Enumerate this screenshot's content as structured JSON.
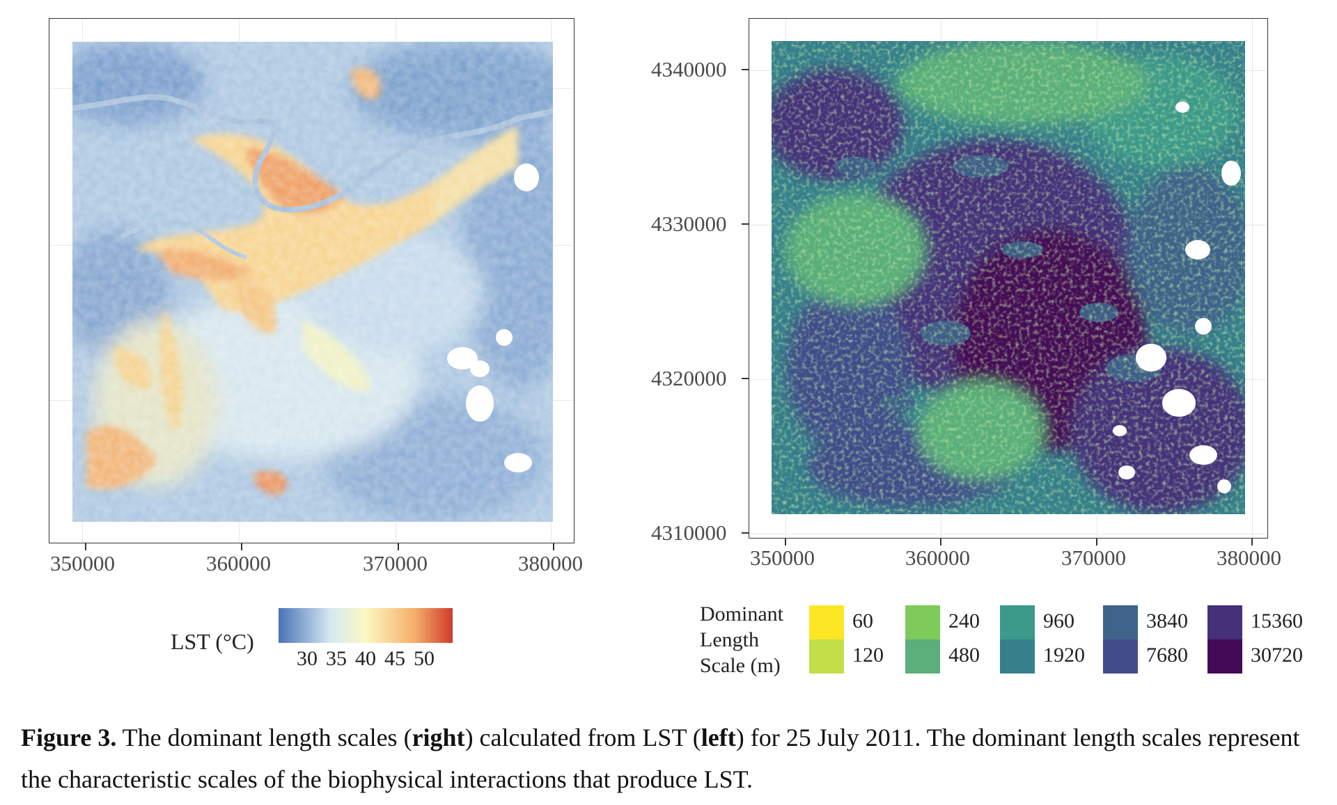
{
  "left_panel": {
    "x_ticks": [
      "350000",
      "360000",
      "370000",
      "380000"
    ],
    "legend": {
      "title": "LST (°C)",
      "ticks": [
        "30",
        "35",
        "40",
        "45",
        "50"
      ],
      "colors": [
        "#4a73b5",
        "#d6e9f2",
        "#fbf8c2",
        "#f4b06a",
        "#d03a2d"
      ]
    }
  },
  "right_panel": {
    "x_ticks": [
      "350000",
      "360000",
      "370000",
      "380000"
    ],
    "y_ticks": [
      "4340000",
      "4330000",
      "4320000",
      "4310000"
    ],
    "legend": {
      "title_lines": [
        "Dominant",
        "Length",
        "Scale (m)"
      ],
      "entries": [
        {
          "label": "60",
          "color": "#fde725"
        },
        {
          "label": "120",
          "color": "#c2df4a"
        },
        {
          "label": "240",
          "color": "#7ecb5c"
        },
        {
          "label": "480",
          "color": "#5aaf7a"
        },
        {
          "label": "960",
          "color": "#3c9a8a"
        },
        {
          "label": "1920",
          "color": "#35808b"
        },
        {
          "label": "3840",
          "color": "#3e648a"
        },
        {
          "label": "7680",
          "color": "#414d8a"
        },
        {
          "label": "15360",
          "color": "#45307a"
        },
        {
          "label": "30720",
          "color": "#440a57"
        }
      ]
    }
  },
  "caption": {
    "label": "Figure 3.",
    "part1": " The dominant length scales (",
    "right": "right",
    "part2": ") calculated from LST (",
    "left": "left",
    "part3": ") for 25 July 2011. The dominant length scales represent the characteristic scales of the biophysical interactions that produce LST."
  }
}
